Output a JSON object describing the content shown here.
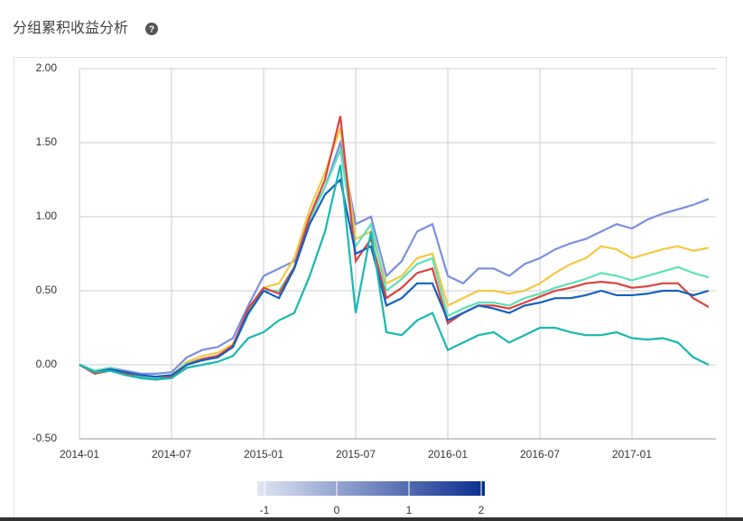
{
  "chart_data": {
    "type": "line",
    "title": "分组累积收益分析",
    "x": [
      "2014-01",
      "2014-02",
      "2014-03",
      "2014-04",
      "2014-05",
      "2014-06",
      "2014-07",
      "2014-08",
      "2014-09",
      "2014-10",
      "2014-11",
      "2014-12",
      "2015-01",
      "2015-02",
      "2015-03",
      "2015-04",
      "2015-05",
      "2015-06",
      "2015-07",
      "2015-08",
      "2015-09",
      "2015-10",
      "2015-11",
      "2015-12",
      "2016-01",
      "2016-02",
      "2016-03",
      "2016-04",
      "2016-05",
      "2016-06",
      "2016-07",
      "2016-08",
      "2016-09",
      "2016-10",
      "2016-11",
      "2016-12",
      "2017-01",
      "2017-02",
      "2017-03",
      "2017-04",
      "2017-05",
      "2017-06"
    ],
    "xtick_every": 6,
    "ylim": [
      -0.5,
      2.0
    ],
    "yticks": [
      {
        "value": -0.5,
        "label": "-0.50"
      },
      {
        "value": 0,
        "label": "0.00"
      },
      {
        "value": 0.5,
        "label": "0.50"
      },
      {
        "value": 1,
        "label": "1.00"
      },
      {
        "value": 1.5,
        "label": "1.50"
      },
      {
        "value": 2,
        "label": "2.00"
      }
    ],
    "grid": true,
    "series": [
      {
        "color": "#7b8fe0",
        "values": [
          0,
          -0.04,
          -0.02,
          -0.04,
          -0.06,
          -0.06,
          -0.05,
          0.05,
          0.1,
          0.12,
          0.18,
          0.4,
          0.6,
          0.65,
          0.7,
          1.0,
          1.2,
          1.5,
          0.95,
          1.0,
          0.6,
          0.7,
          0.9,
          0.95,
          0.6,
          0.55,
          0.65,
          0.65,
          0.6,
          0.68,
          0.72,
          0.78,
          0.82,
          0.85,
          0.9,
          0.95,
          0.92,
          0.98,
          1.02,
          1.05,
          1.08,
          1.12
        ]
      },
      {
        "color": "#f5c842",
        "values": [
          0,
          -0.05,
          -0.03,
          -0.05,
          -0.08,
          -0.08,
          -0.07,
          0.02,
          0.06,
          0.08,
          0.14,
          0.36,
          0.52,
          0.55,
          0.72,
          1.05,
          1.3,
          1.6,
          0.85,
          0.9,
          0.55,
          0.6,
          0.72,
          0.75,
          0.4,
          0.45,
          0.5,
          0.5,
          0.48,
          0.5,
          0.55,
          0.62,
          0.68,
          0.72,
          0.8,
          0.78,
          0.72,
          0.75,
          0.78,
          0.8,
          0.77,
          0.79
        ]
      },
      {
        "color": "#5ee0b8",
        "values": [
          0,
          -0.04,
          -0.02,
          -0.05,
          -0.08,
          -0.09,
          -0.07,
          0.01,
          0.04,
          0.06,
          0.12,
          0.34,
          0.5,
          0.5,
          0.66,
          0.98,
          1.2,
          1.45,
          0.8,
          0.95,
          0.5,
          0.58,
          0.68,
          0.72,
          0.33,
          0.38,
          0.42,
          0.42,
          0.4,
          0.45,
          0.48,
          0.52,
          0.55,
          0.58,
          0.62,
          0.6,
          0.57,
          0.6,
          0.63,
          0.66,
          0.62,
          0.59
        ]
      },
      {
        "color": "#d9443f",
        "values": [
          0,
          -0.06,
          -0.04,
          -0.06,
          -0.09,
          -0.1,
          -0.08,
          0.0,
          0.04,
          0.06,
          0.13,
          0.38,
          0.52,
          0.48,
          0.66,
          1.0,
          1.25,
          1.68,
          0.7,
          0.85,
          0.45,
          0.52,
          0.62,
          0.65,
          0.28,
          0.35,
          0.4,
          0.4,
          0.38,
          0.42,
          0.46,
          0.5,
          0.52,
          0.55,
          0.56,
          0.55,
          0.52,
          0.53,
          0.55,
          0.55,
          0.45,
          0.39
        ]
      },
      {
        "color": "#1560bd",
        "values": [
          0,
          -0.05,
          -0.03,
          -0.05,
          -0.07,
          -0.08,
          -0.07,
          0.0,
          0.03,
          0.05,
          0.12,
          0.35,
          0.5,
          0.45,
          0.65,
          0.95,
          1.15,
          1.25,
          0.75,
          0.8,
          0.4,
          0.45,
          0.55,
          0.55,
          0.3,
          0.35,
          0.4,
          0.38,
          0.35,
          0.4,
          0.42,
          0.45,
          0.45,
          0.47,
          0.5,
          0.47,
          0.47,
          0.48,
          0.5,
          0.5,
          0.47,
          0.5
        ]
      },
      {
        "color": "#18b8b0",
        "values": [
          0,
          -0.05,
          -0.04,
          -0.07,
          -0.09,
          -0.1,
          -0.09,
          -0.02,
          0.0,
          0.02,
          0.06,
          0.18,
          0.22,
          0.3,
          0.35,
          0.6,
          0.9,
          1.35,
          0.35,
          0.9,
          0.22,
          0.2,
          0.3,
          0.35,
          0.1,
          0.15,
          0.2,
          0.22,
          0.15,
          0.2,
          0.25,
          0.25,
          0.22,
          0.2,
          0.2,
          0.22,
          0.18,
          0.17,
          0.18,
          0.15,
          0.05,
          0.0
        ]
      }
    ],
    "colorbar": {
      "lim": [
        -1.1,
        2.05
      ],
      "ticks": [
        -1,
        0,
        1,
        2
      ],
      "colors": [
        "#e0e6f3",
        "#0a2d8f"
      ]
    }
  }
}
